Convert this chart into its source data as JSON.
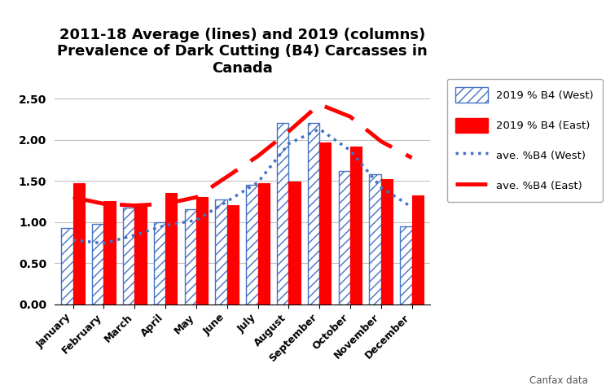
{
  "months": [
    "January",
    "February",
    "March",
    "April",
    "May",
    "June",
    "July",
    "August",
    "September",
    "October",
    "November",
    "December"
  ],
  "west_2019": [
    0.93,
    0.98,
    1.17,
    1.0,
    1.15,
    1.27,
    1.45,
    2.2,
    2.2,
    1.62,
    1.58,
    0.95
  ],
  "east_2019": [
    1.47,
    1.25,
    1.22,
    1.35,
    1.3,
    1.2,
    1.47,
    1.49,
    1.97,
    1.92,
    1.52,
    1.32
  ],
  "west_avg": [
    0.78,
    0.74,
    0.84,
    0.96,
    1.02,
    1.25,
    1.48,
    1.95,
    2.13,
    1.87,
    1.42,
    1.18
  ],
  "east_avg": [
    1.3,
    1.22,
    1.2,
    1.22,
    1.3,
    1.55,
    1.8,
    2.1,
    2.43,
    2.28,
    1.98,
    1.78
  ],
  "title_line1": "2011-18 Average (lines) and 2019 (columns)",
  "title_line2": "Prevalence of Dark Cutting (B4) Carcasses in",
  "title_line3": "Canada",
  "ylim": [
    0.0,
    2.75
  ],
  "yticks": [
    0.0,
    0.5,
    1.0,
    1.5,
    2.0,
    2.5
  ],
  "bar_color_west": "#4472C4",
  "bar_color_east": "#FF0000",
  "line_color_west": "#4472C4",
  "line_color_east": "#FF0000",
  "legend_labels": [
    "2019 % B4 (West)",
    "2019 % B4 (East)",
    "ave. %B4 (West)",
    "ave. %B4 (East)"
  ],
  "source_text": "Canfax data",
  "background_color": "#FFFFFF",
  "grid_color": "#C0C0C0"
}
